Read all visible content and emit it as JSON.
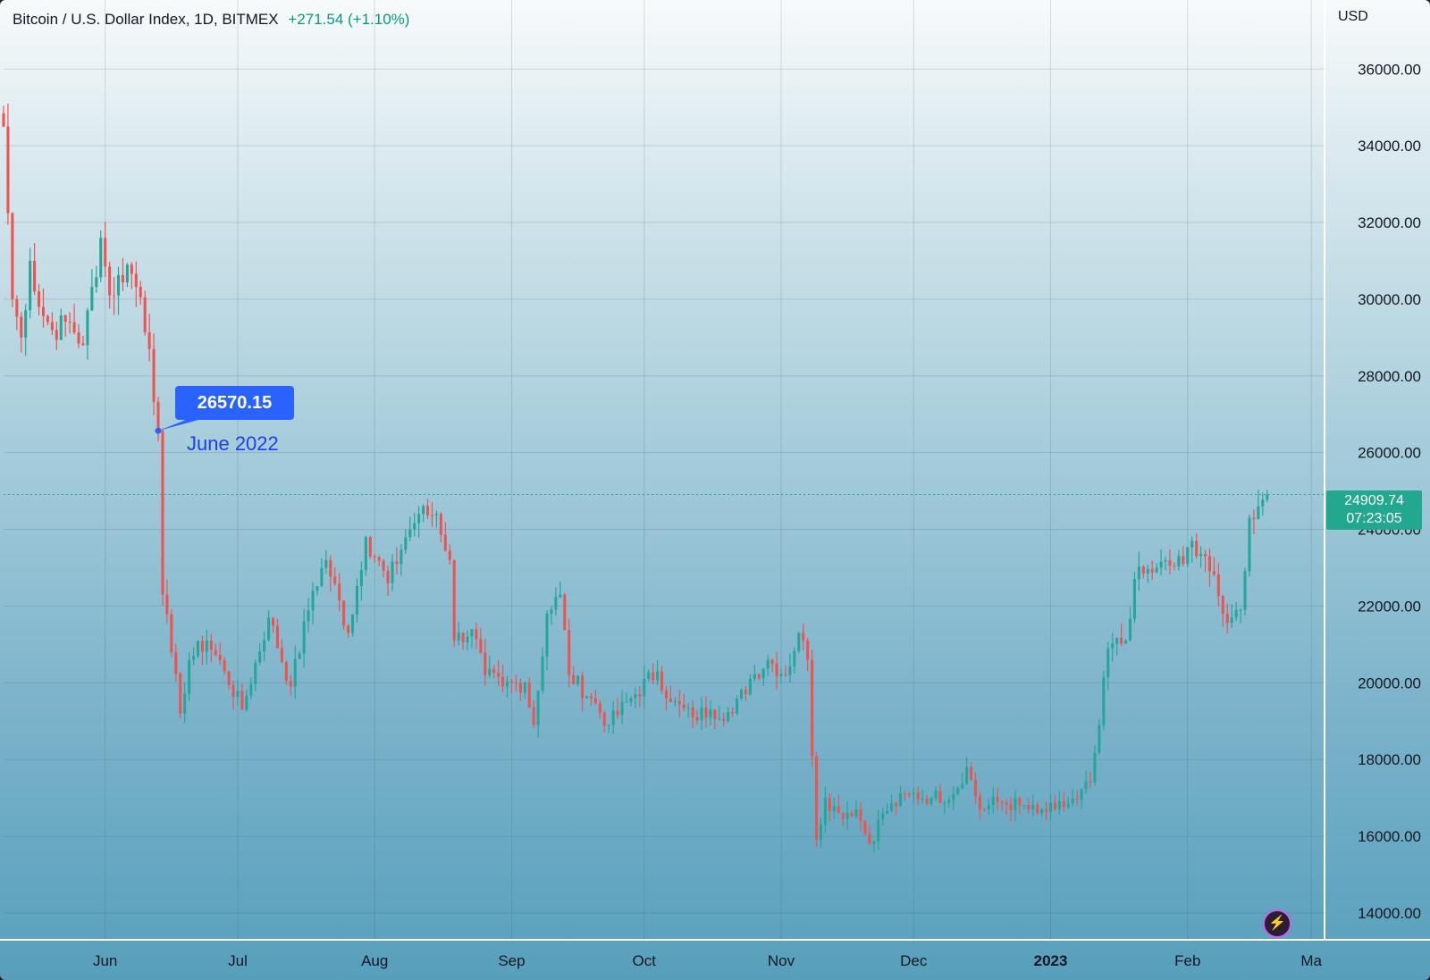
{
  "header": {
    "symbol_text": "Bitcoin / U.S. Dollar Index, 1D, BITMEX",
    "change_text": "+271.54 (+1.10%)",
    "currency": "USD"
  },
  "price_tag": {
    "price": "24909.74",
    "countdown": "07:23:05"
  },
  "callout": {
    "value": "26570.15",
    "label": "June 2022"
  },
  "colors": {
    "up": "#26a69a",
    "down": "#ef5350",
    "callout": "#2962ff",
    "price_tag": "#22a88e"
  },
  "icons": {
    "bolt_button": "lightning-bolt-icon"
  },
  "chart_data": {
    "type": "candlestick",
    "y_ticks": [
      "14000.00",
      "16000.00",
      "18000.00",
      "20000.00",
      "22000.00",
      "24000.00",
      "26000.00",
      "28000.00",
      "30000.00",
      "32000.00",
      "34000.00",
      "36000.00"
    ],
    "x_ticks": [
      "Jun",
      "Jul",
      "Aug",
      "Sep",
      "Oct",
      "Nov",
      "Dec",
      "2023",
      "Feb",
      "Ma"
    ],
    "ylim": [
      13300,
      37800
    ],
    "xlim": [
      "2022-05-09",
      "2023-03-04"
    ],
    "grid": true,
    "last_price": 24909.74,
    "annotation": {
      "date": "2022-06-13",
      "value": 26570.15
    },
    "price_path": [
      [
        "2022-05-09",
        34500
      ],
      [
        "2022-05-11",
        30000
      ],
      [
        "2022-05-13",
        29000
      ],
      [
        "2022-05-15",
        31000
      ],
      [
        "2022-05-17",
        29800
      ],
      [
        "2022-05-20",
        29200
      ],
      [
        "2022-05-24",
        29400
      ],
      [
        "2022-05-27",
        28800
      ],
      [
        "2022-05-31",
        31600
      ],
      [
        "2022-06-02",
        30100
      ],
      [
        "2022-06-06",
        30900
      ],
      [
        "2022-06-09",
        30050
      ],
      [
        "2022-06-11",
        28700
      ],
      [
        "2022-06-13",
        26570
      ],
      [
        "2022-06-14",
        22300
      ],
      [
        "2022-06-16",
        20800
      ],
      [
        "2022-06-18",
        19200
      ],
      [
        "2022-06-20",
        20600
      ],
      [
        "2022-06-24",
        21100
      ],
      [
        "2022-06-28",
        20300
      ],
      [
        "2022-07-02",
        19300
      ],
      [
        "2022-07-08",
        21700
      ],
      [
        "2022-07-13",
        19900
      ],
      [
        "2022-07-18",
        22400
      ],
      [
        "2022-07-21",
        23200
      ],
      [
        "2022-07-26",
        21300
      ],
      [
        "2022-07-30",
        23800
      ],
      [
        "2022-08-04",
        22600
      ],
      [
        "2022-08-08",
        23800
      ],
      [
        "2022-08-11",
        24400
      ],
      [
        "2022-08-15",
        24400
      ],
      [
        "2022-08-18",
        23200
      ],
      [
        "2022-08-19",
        21100
      ],
      [
        "2022-08-23",
        21400
      ],
      [
        "2022-08-26",
        20200
      ],
      [
        "2022-08-30",
        19900
      ],
      [
        "2022-09-04",
        20000
      ],
      [
        "2022-09-06",
        18900
      ],
      [
        "2022-09-09",
        21800
      ],
      [
        "2022-09-12",
        22300
      ],
      [
        "2022-09-14",
        20200
      ],
      [
        "2022-09-19",
        19600
      ],
      [
        "2022-09-23",
        18900
      ],
      [
        "2022-09-28",
        19600
      ],
      [
        "2022-10-04",
        20300
      ],
      [
        "2022-10-07",
        19500
      ],
      [
        "2022-10-12",
        19100
      ],
      [
        "2022-10-16",
        19300
      ],
      [
        "2022-10-21",
        19200
      ],
      [
        "2022-10-25",
        20100
      ],
      [
        "2022-10-29",
        20600
      ],
      [
        "2022-11-02",
        20200
      ],
      [
        "2022-11-05",
        21300
      ],
      [
        "2022-11-07",
        20600
      ],
      [
        "2022-11-09",
        15900
      ],
      [
        "2022-11-11",
        17000
      ],
      [
        "2022-11-14",
        16600
      ],
      [
        "2022-11-18",
        16700
      ],
      [
        "2022-11-21",
        15800
      ],
      [
        "2022-11-24",
        16600
      ],
      [
        "2022-11-30",
        17100
      ],
      [
        "2022-12-05",
        17000
      ],
      [
        "2022-12-10",
        17100
      ],
      [
        "2022-12-13",
        17800
      ],
      [
        "2022-12-16",
        16700
      ],
      [
        "2022-12-20",
        16900
      ],
      [
        "2022-12-25",
        16800
      ],
      [
        "2022-12-29",
        16600
      ],
      [
        "2023-01-02",
        16700
      ],
      [
        "2023-01-07",
        16950
      ],
      [
        "2023-01-10",
        17400
      ],
      [
        "2023-01-12",
        18900
      ],
      [
        "2023-01-14",
        20900
      ],
      [
        "2023-01-18",
        21100
      ],
      [
        "2023-01-20",
        22700
      ],
      [
        "2023-01-25",
        23000
      ],
      [
        "2023-01-31",
        23100
      ],
      [
        "2023-02-02",
        23700
      ],
      [
        "2023-02-05",
        23300
      ],
      [
        "2023-02-09",
        21800
      ],
      [
        "2023-02-11",
        21700
      ],
      [
        "2023-02-13",
        21900
      ],
      [
        "2023-02-15",
        24300
      ],
      [
        "2023-02-17",
        24600
      ],
      [
        "2023-02-19",
        24910
      ]
    ]
  }
}
